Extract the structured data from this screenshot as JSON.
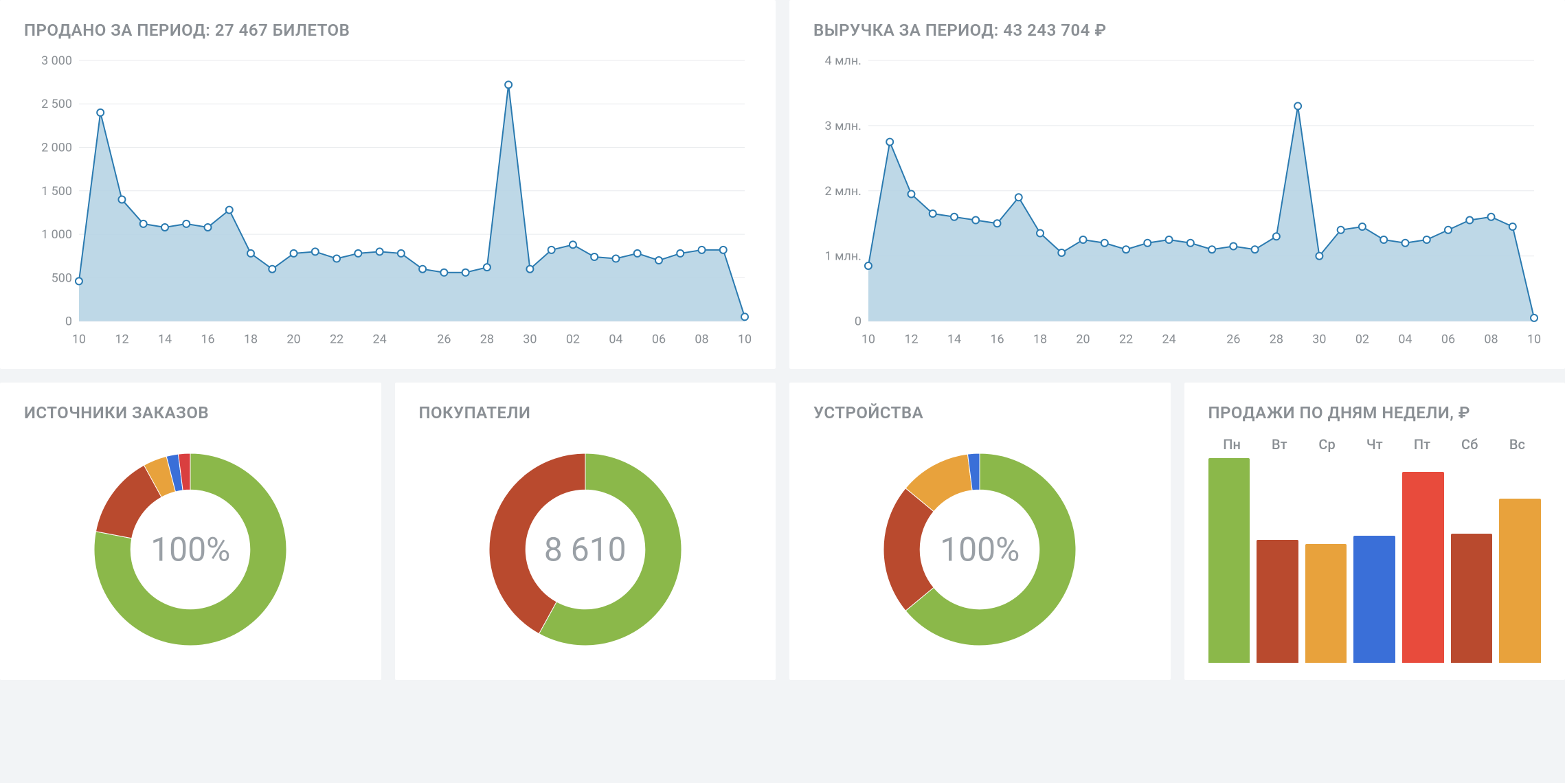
{
  "tickets_chart": {
    "title": "ПРОДАНО ЗА ПЕРИОД: 27 467 билетов",
    "type": "area",
    "line_color": "#2a7ab0",
    "fill_color": "#b3d1e3",
    "marker_stroke": "#2a7ab0",
    "marker_fill": "#ffffff",
    "marker_radius": 5,
    "line_width": 2,
    "grid_color": "#e8eaed",
    "background_color": "#ffffff",
    "ylim": [
      0,
      3000
    ],
    "ytick_step": 500,
    "yticks": [
      "0",
      "500",
      "1 000",
      "1 500",
      "2 000",
      "2 500",
      "3 000"
    ],
    "xticks": [
      "10",
      "12",
      "14",
      "16",
      "18",
      "20",
      "22",
      "24",
      "26",
      "28",
      "30",
      "02",
      "04",
      "06",
      "08",
      "10"
    ],
    "values": [
      460,
      2400,
      1400,
      1120,
      1080,
      1120,
      1080,
      1280,
      780,
      600,
      780,
      800,
      720,
      780,
      800,
      780,
      600,
      560,
      560,
      620,
      2720,
      600,
      820,
      880,
      740,
      720,
      780,
      700,
      780,
      820,
      820,
      50
    ]
  },
  "revenue_chart": {
    "title": "ВЫРУЧКА ЗА ПЕРИОД: 43 243 704 ₽",
    "type": "area",
    "line_color": "#2a7ab0",
    "fill_color": "#b3d1e3",
    "marker_stroke": "#2a7ab0",
    "marker_fill": "#ffffff",
    "marker_radius": 5,
    "line_width": 2,
    "grid_color": "#e8eaed",
    "background_color": "#ffffff",
    "ylim": [
      0,
      4
    ],
    "ytick_step": 1,
    "yticks": [
      "0",
      "1 млн.",
      "2 млн.",
      "3 млн.",
      "4 млн."
    ],
    "xticks": [
      "10",
      "12",
      "14",
      "16",
      "18",
      "20",
      "22",
      "24",
      "26",
      "28",
      "30",
      "02",
      "04",
      "06",
      "08",
      "10"
    ],
    "values": [
      0.85,
      2.75,
      1.95,
      1.65,
      1.6,
      1.55,
      1.5,
      1.9,
      1.35,
      1.05,
      1.25,
      1.2,
      1.1,
      1.2,
      1.25,
      1.2,
      1.1,
      1.15,
      1.1,
      1.3,
      3.3,
      1.0,
      1.4,
      1.45,
      1.25,
      1.2,
      1.25,
      1.4,
      1.55,
      1.6,
      1.45,
      0.05
    ]
  },
  "sources_donut": {
    "title": "ИСТОЧНИКИ ЗАКАЗОВ",
    "type": "donut",
    "center_text": "100%",
    "inner_radius_ratio": 0.62,
    "slices": [
      {
        "value": 78,
        "color": "#8bb84a"
      },
      {
        "value": 14,
        "color": "#b94a2e"
      },
      {
        "value": 4,
        "color": "#e8a23c"
      },
      {
        "value": 2,
        "color": "#3a6fd8"
      },
      {
        "value": 2,
        "color": "#d93f3f"
      }
    ]
  },
  "buyers_donut": {
    "title": "ПОКУПАТЕЛИ",
    "type": "donut",
    "center_text": "8 610",
    "inner_radius_ratio": 0.62,
    "slices": [
      {
        "value": 58,
        "color": "#8bb84a"
      },
      {
        "value": 42,
        "color": "#b94a2e"
      }
    ]
  },
  "devices_donut": {
    "title": "УСТРОЙСТВА",
    "type": "donut",
    "center_text": "100%",
    "inner_radius_ratio": 0.62,
    "slices": [
      {
        "value": 64,
        "color": "#8bb84a"
      },
      {
        "value": 22,
        "color": "#b94a2e"
      },
      {
        "value": 12,
        "color": "#e8a23c"
      },
      {
        "value": 2,
        "color": "#3a6fd8"
      }
    ]
  },
  "weekday_bars": {
    "title": "ПРОДАЖИ ПО ДНЯМ НЕДЕЛИ, ₽",
    "type": "bar",
    "labels": [
      "Пн",
      "Вт",
      "Ср",
      "Чт",
      "Пт",
      "Сб",
      "Вс"
    ],
    "values": [
      100,
      60,
      58,
      62,
      93,
      63,
      80
    ],
    "colors": [
      "#8bb84a",
      "#b94a2e",
      "#e8a23c",
      "#3a6fd8",
      "#e84b3c",
      "#b94a2e",
      "#e8a23c"
    ],
    "background_color": "#ffffff"
  },
  "style": {
    "card_title_color": "#8a8f94",
    "axis_label_color": "#8a8f94",
    "page_bg": "#f2f4f6"
  }
}
